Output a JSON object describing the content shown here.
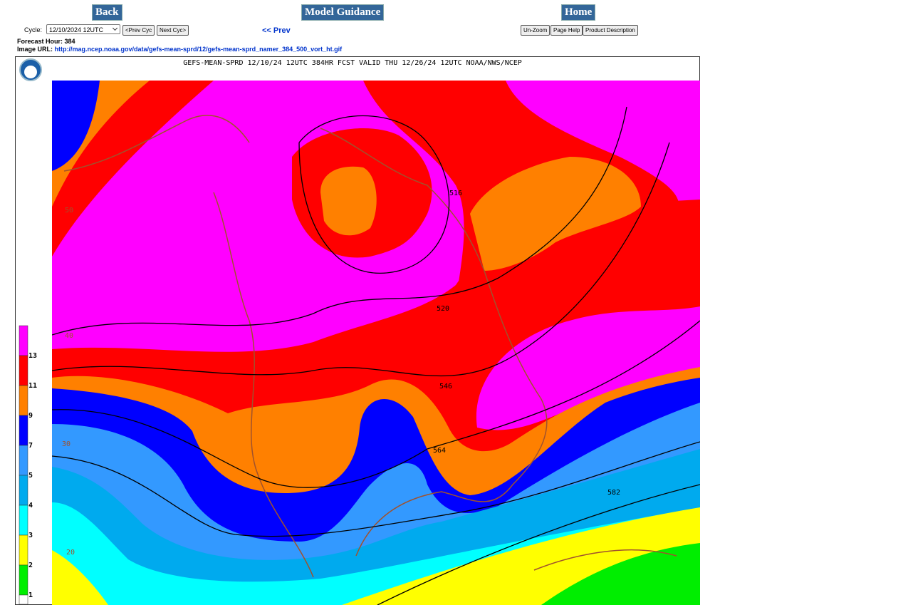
{
  "nav": {
    "back": "Back",
    "model_guidance": "Model Guidance",
    "home": "Home"
  },
  "controls": {
    "cycle_label": "Cycle:",
    "cycle_value": "12/10/2024 12UTC",
    "prev_cyc": "<Prev Cyc",
    "next_cyc": "Next Cyc>",
    "prev": "<< Prev",
    "unzoom": "Un-Zoom",
    "page_help": "Page Help",
    "product_description": "Product Description"
  },
  "info": {
    "forecast_hour": "Forecast Hour: 384",
    "image_url_label": "Image URL:",
    "image_url": "http://mag.ncep.noaa.gov/data/gefs-mean-sprd/12/gefs-mean-sprd_namer_384_500_vort_ht.gif"
  },
  "map": {
    "title": "GEFS-MEAN-SPRD 12/10/24 12UTC 384HR FCST VALID THU 12/26/24 12UTC NOAA/NWS/NCEP",
    "contour_labels": [
      "516",
      "520",
      "546",
      "564",
      "582"
    ],
    "latitude_labels": [
      "50",
      "40",
      "30",
      "20"
    ],
    "colorbar_labels": [
      "13",
      "11",
      "9",
      "7",
      "5",
      "4",
      "3",
      "2",
      "1"
    ]
  }
}
